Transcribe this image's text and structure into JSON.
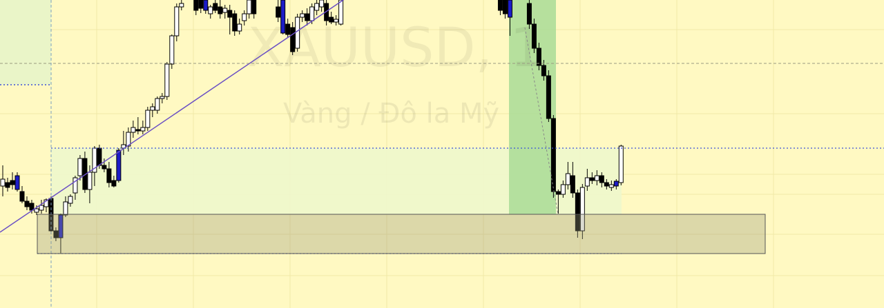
{
  "chart_data": {
    "type": "candlestick",
    "title": "XAUUSD, 1",
    "subtitle": "Vàng / Đô la Mỹ",
    "xlim": [
      0,
      183
    ],
    "ylim": [
      0,
      447
    ],
    "x": [
      0,
      1,
      2,
      3,
      4,
      5,
      6,
      7,
      8,
      9,
      10,
      11,
      12,
      13,
      14,
      15,
      16,
      17,
      18,
      19,
      20,
      21,
      22,
      23,
      24,
      25,
      26,
      27,
      28,
      29,
      30,
      31,
      32,
      33,
      34,
      35,
      36,
      37,
      40,
      41,
      42,
      43,
      44,
      45,
      46,
      47,
      48,
      49,
      50,
      51,
      52,
      57,
      58,
      59,
      60,
      61,
      62,
      63,
      64,
      65,
      66,
      67,
      68,
      69,
      70,
      103,
      104,
      105,
      109,
      110,
      111,
      112,
      113,
      114,
      115,
      116,
      117,
      118,
      119,
      120,
      121,
      122,
      123,
      124,
      125,
      126,
      127,
      128
    ],
    "open": [
      177,
      182,
      185,
      192,
      169,
      155,
      152,
      139,
      142,
      147,
      159,
      112,
      102,
      135,
      152,
      167,
      192,
      217,
      172,
      197,
      232,
      207,
      202,
      185,
      229,
      232,
      235,
      255,
      259,
      257,
      262,
      287,
      287,
      304,
      307,
      354,
      395,
      437,
      447,
      447,
      447,
      427,
      442,
      437,
      429,
      432,
      427,
      402,
      417,
      427,
      447,
      437,
      447,
      412,
      407,
      377,
      422,
      427,
      417,
      432,
      437,
      442,
      422,
      415,
      412,
      447,
      447,
      447,
      442,
      412,
      377,
      352,
      337,
      275,
      169,
      165,
      179,
      192,
      167,
      112,
      177,
      189,
      185,
      192,
      182,
      175,
      177,
      182
    ],
    "high": [
      207,
      189,
      197,
      197,
      177,
      162,
      157,
      149,
      157,
      159,
      162,
      117,
      137,
      162,
      165,
      192,
      222,
      227,
      207,
      235,
      237,
      217,
      212,
      192,
      232,
      257,
      262,
      272,
      277,
      272,
      292,
      297,
      307,
      312,
      357,
      397,
      442,
      452,
      457,
      455,
      457,
      440,
      450,
      447,
      440,
      440,
      432,
      420,
      432,
      452,
      457,
      450,
      457,
      420,
      415,
      427,
      432,
      435,
      442,
      447,
      452,
      447,
      430,
      425,
      457,
      457,
      457,
      457,
      447,
      420,
      385,
      360,
      345,
      280,
      172,
      185,
      212,
      212,
      172,
      180,
      202,
      197,
      200,
      197,
      187,
      185,
      187,
      237
    ],
    "low": [
      162,
      169,
      172,
      169,
      152,
      142,
      137,
      135,
      137,
      139,
      107,
      97,
      79,
      132,
      147,
      157,
      185,
      167,
      152,
      177,
      202,
      197,
      175,
      175,
      182,
      222,
      227,
      247,
      252,
      252,
      257,
      277,
      282,
      297,
      302,
      347,
      387,
      432,
      425,
      428,
      427,
      420,
      428,
      420,
      420,
      397,
      395,
      397,
      410,
      420,
      420,
      415,
      397,
      392,
      367,
      372,
      415,
      410,
      412,
      425,
      430,
      410,
      412,
      410,
      410,
      425,
      420,
      395,
      405,
      370,
      345,
      330,
      270,
      160,
      137,
      160,
      172,
      160,
      102,
      100,
      170,
      180,
      178,
      175,
      172,
      170,
      172,
      178
    ],
    "close": [
      187,
      175,
      179,
      172,
      155,
      147,
      142,
      144,
      149,
      157,
      112,
      102,
      135,
      154,
      162,
      189,
      217,
      172,
      197,
      232,
      207,
      202,
      182,
      177,
      185,
      237,
      255,
      262,
      257,
      262,
      287,
      292,
      304,
      307,
      354,
      395,
      437,
      442,
      432,
      435,
      432,
      437,
      432,
      427,
      435,
      422,
      402,
      412,
      427,
      447,
      427,
      422,
      399,
      397,
      372,
      422,
      427,
      417,
      437,
      442,
      447,
      417,
      415,
      419,
      447,
      432,
      427,
      422,
      412,
      377,
      352,
      337,
      275,
      169,
      165,
      179,
      195,
      167,
      112,
      175,
      189,
      185,
      192,
      182,
      177,
      179,
      184,
      235
    ],
    "colors": [
      "#ffffff",
      "#000000",
      "#000000",
      "#1c1cc8",
      "#000000",
      "#000000",
      "#000000",
      "#ffffff",
      "#ffffff",
      "#ffffff",
      "#000000",
      "#000000",
      "#1c1cc8",
      "#ffffff",
      "#ffffff",
      "#ffffff",
      "#ffffff",
      "#000000",
      "#ffffff",
      "#ffffff",
      "#000000",
      "#000000",
      "#000000",
      "#000000",
      "#1c1cc8",
      "#ffffff",
      "#ffffff",
      "#ffffff",
      "#000000",
      "#ffffff",
      "#ffffff",
      "#ffffff",
      "#ffffff",
      "#ffffff",
      "#ffffff",
      "#ffffff",
      "#ffffff",
      "#ffffff",
      "#000000",
      "#000000",
      "#1c1cc8",
      "#ffffff",
      "#000000",
      "#000000",
      "#ffffff",
      "#000000",
      "#000000",
      "#ffffff",
      "#ffffff",
      "#ffffff",
      "#000000",
      "#000000",
      "#1c1cc8",
      "#000000",
      "#000000",
      "#ffffff",
      "#ffffff",
      "#000000",
      "#ffffff",
      "#ffffff",
      "#ffffff",
      "#000000",
      "#000000",
      "#ffffff",
      "#ffffff",
      "#000000",
      "#000000",
      "#1c1cc8",
      "#000000",
      "#000000",
      "#000000",
      "#000000",
      "#000000",
      "#000000",
      "#000000",
      "#ffffff",
      "#ffffff",
      "#000000",
      "#000000",
      "#ffffff",
      "#ffffff",
      "#000000",
      "#ffffff",
      "#000000",
      "#000000",
      "#ffffff",
      "#1c1cc8",
      "#ffffff"
    ]
  }
}
